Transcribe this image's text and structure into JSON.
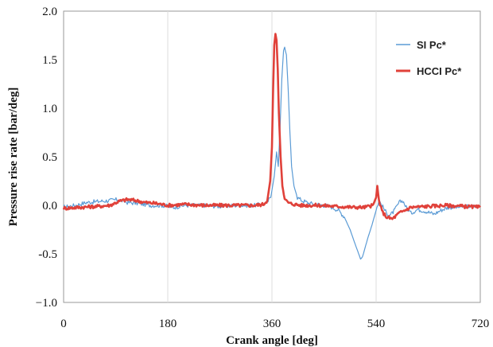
{
  "chart_data": {
    "type": "line",
    "title": "",
    "xlabel": "Crank angle [deg]",
    "ylabel": "Pressure rise rate [bar/deg]",
    "xlim": [
      0,
      720
    ],
    "ylim": [
      -1.0,
      2.0
    ],
    "xticks": [
      0,
      180,
      360,
      540,
      720
    ],
    "yticks": [
      -1.0,
      -0.5,
      0.0,
      0.5,
      1.0,
      1.5,
      2.0
    ],
    "xtick_labels": [
      "0",
      "180",
      "360",
      "540",
      "720"
    ],
    "ytick_labels": [
      "−1.0",
      "-0.5",
      "0.0",
      "0.5",
      "1.0",
      "1.5",
      "2.0"
    ],
    "grid": "vertical",
    "legend_position": "top-right",
    "series": [
      {
        "name": "SI Pc*",
        "color": "#5b9bd5",
        "points": [
          [
            0,
            -0.02
          ],
          [
            20,
            0.0
          ],
          [
            40,
            0.03
          ],
          [
            60,
            0.04
          ],
          [
            80,
            0.05
          ],
          [
            95,
            0.06
          ],
          [
            110,
            0.03
          ],
          [
            130,
            0.02
          ],
          [
            150,
            0.0
          ],
          [
            170,
            0.0
          ],
          [
            190,
            -0.02
          ],
          [
            210,
            0.0
          ],
          [
            240,
            0.0
          ],
          [
            270,
            -0.01
          ],
          [
            300,
            0.0
          ],
          [
            330,
            0.0
          ],
          [
            350,
            0.02
          ],
          [
            358,
            0.08
          ],
          [
            364,
            0.3
          ],
          [
            368,
            0.55
          ],
          [
            371,
            0.4
          ],
          [
            374,
            0.8
          ],
          [
            377,
            1.3
          ],
          [
            380,
            1.6
          ],
          [
            382,
            1.65
          ],
          [
            385,
            1.55
          ],
          [
            388,
            1.2
          ],
          [
            391,
            0.75
          ],
          [
            394,
            0.4
          ],
          [
            398,
            0.2
          ],
          [
            404,
            0.08
          ],
          [
            412,
            0.05
          ],
          [
            425,
            0.02
          ],
          [
            440,
            0.01
          ],
          [
            460,
            -0.01
          ],
          [
            475,
            -0.05
          ],
          [
            485,
            -0.12
          ],
          [
            495,
            -0.25
          ],
          [
            505,
            -0.42
          ],
          [
            513,
            -0.55
          ],
          [
            518,
            -0.5
          ],
          [
            525,
            -0.35
          ],
          [
            533,
            -0.2
          ],
          [
            540,
            -0.05
          ],
          [
            545,
            0.05
          ],
          [
            550,
            0.0
          ],
          [
            558,
            -0.08
          ],
          [
            565,
            -0.1
          ],
          [
            572,
            -0.05
          ],
          [
            580,
            0.03
          ],
          [
            586,
            0.05
          ],
          [
            592,
            -0.02
          ],
          [
            600,
            -0.08
          ],
          [
            612,
            -0.04
          ],
          [
            625,
            -0.06
          ],
          [
            640,
            -0.09
          ],
          [
            652,
            -0.05
          ],
          [
            665,
            -0.02
          ],
          [
            680,
            -0.02
          ],
          [
            700,
            -0.01
          ],
          [
            720,
            -0.01
          ]
        ]
      },
      {
        "name": "HCCI Pc*",
        "color": "#e0413a",
        "points": [
          [
            0,
            -0.03
          ],
          [
            30,
            -0.02
          ],
          [
            60,
            -0.01
          ],
          [
            80,
            0.0
          ],
          [
            95,
            0.04
          ],
          [
            110,
            0.06
          ],
          [
            125,
            0.05
          ],
          [
            140,
            0.03
          ],
          [
            160,
            0.02
          ],
          [
            180,
            0.0
          ],
          [
            210,
            0.01
          ],
          [
            240,
            0.0
          ],
          [
            270,
            0.0
          ],
          [
            300,
            0.0
          ],
          [
            330,
            0.0
          ],
          [
            345,
            0.01
          ],
          [
            352,
            0.05
          ],
          [
            357,
            0.25
          ],
          [
            360,
            0.6
          ],
          [
            362,
            1.2
          ],
          [
            364,
            1.65
          ],
          [
            366,
            1.78
          ],
          [
            368,
            1.7
          ],
          [
            370,
            1.4
          ],
          [
            372,
            0.95
          ],
          [
            375,
            0.5
          ],
          [
            378,
            0.2
          ],
          [
            382,
            0.06
          ],
          [
            390,
            0.02
          ],
          [
            410,
            0.0
          ],
          [
            440,
            0.0
          ],
          [
            470,
            -0.01
          ],
          [
            500,
            -0.02
          ],
          [
            520,
            -0.02
          ],
          [
            535,
            0.0
          ],
          [
            540,
            0.08
          ],
          [
            542,
            0.2
          ],
          [
            545,
            0.05
          ],
          [
            550,
            -0.06
          ],
          [
            558,
            -0.12
          ],
          [
            568,
            -0.14
          ],
          [
            580,
            -0.08
          ],
          [
            600,
            -0.02
          ],
          [
            630,
            -0.01
          ],
          [
            660,
            0.0
          ],
          [
            690,
            -0.01
          ],
          [
            720,
            -0.02
          ]
        ]
      }
    ]
  }
}
